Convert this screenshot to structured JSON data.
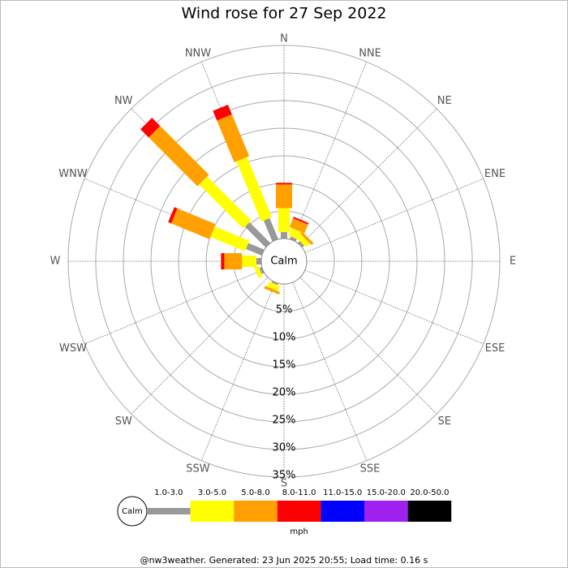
{
  "chart_data": {
    "type": "windrose",
    "title": "Wind rose for 27 Sep 2022",
    "directions": [
      "N",
      "NNE",
      "NE",
      "ENE",
      "E",
      "ESE",
      "SE",
      "SSE",
      "S",
      "SSW",
      "SW",
      "WSW",
      "W",
      "WNW",
      "NW",
      "NNW"
    ],
    "calm_label": "Calm",
    "units": "mph",
    "rlim": [
      0,
      35
    ],
    "rticks": [
      {
        "value": 5,
        "label": "5%"
      },
      {
        "value": 10,
        "label": "10%"
      },
      {
        "value": 15,
        "label": "15%"
      },
      {
        "value": 20,
        "label": "20%"
      },
      {
        "value": 25,
        "label": "25%"
      },
      {
        "value": 30,
        "label": "30%"
      },
      {
        "value": 35,
        "label": "35%"
      }
    ],
    "series": [
      {
        "name": "1.0-3.0",
        "color": "#999999",
        "values": [
          1.2,
          0.5,
          0.5,
          0,
          0,
          0,
          0,
          0,
          0,
          0.3,
          0,
          0.5,
          0.9,
          3.1,
          5.3,
          4.1
        ]
      },
      {
        "name": "3.0-5.0",
        "color": "#ffff00",
        "values": [
          4.3,
          1.5,
          1.0,
          0,
          0,
          0,
          0,
          0,
          0,
          1.0,
          0,
          0.8,
          2.6,
          6.8,
          11.3,
          11.8
        ]
      },
      {
        "name": "5.0-8.0",
        "color": "#ffa000",
        "values": [
          4.3,
          1.7,
          0.5,
          0,
          0,
          0,
          0,
          0,
          0,
          0.5,
          0,
          0,
          3.2,
          7.5,
          12.5,
          8.2
        ]
      },
      {
        "name": "8.0-11.0",
        "color": "#ff0000",
        "values": [
          0.3,
          0.3,
          0,
          0,
          0,
          0,
          0,
          0,
          0,
          0,
          0,
          0,
          0.6,
          0.6,
          2.1,
          1.9
        ]
      },
      {
        "name": "11.0-15.0",
        "color": "#0000ff",
        "values": [
          0,
          0,
          0,
          0,
          0,
          0,
          0,
          0,
          0,
          0,
          0,
          0,
          0,
          0,
          0,
          0
        ]
      },
      {
        "name": "15.0-20.0",
        "color": "#a020f0",
        "values": [
          0,
          0,
          0,
          0,
          0,
          0,
          0,
          0,
          0,
          0,
          0,
          0,
          0,
          0,
          0,
          0
        ]
      },
      {
        "name": "20.0-50.0",
        "color": "#000000",
        "values": [
          0,
          0,
          0,
          0,
          0,
          0,
          0,
          0,
          0,
          0,
          0,
          0,
          0,
          0,
          0,
          0
        ]
      }
    ],
    "footer": "@nw3weather. Generated: 23 Jun 2025 20:55; Load time: 0.16 s"
  }
}
